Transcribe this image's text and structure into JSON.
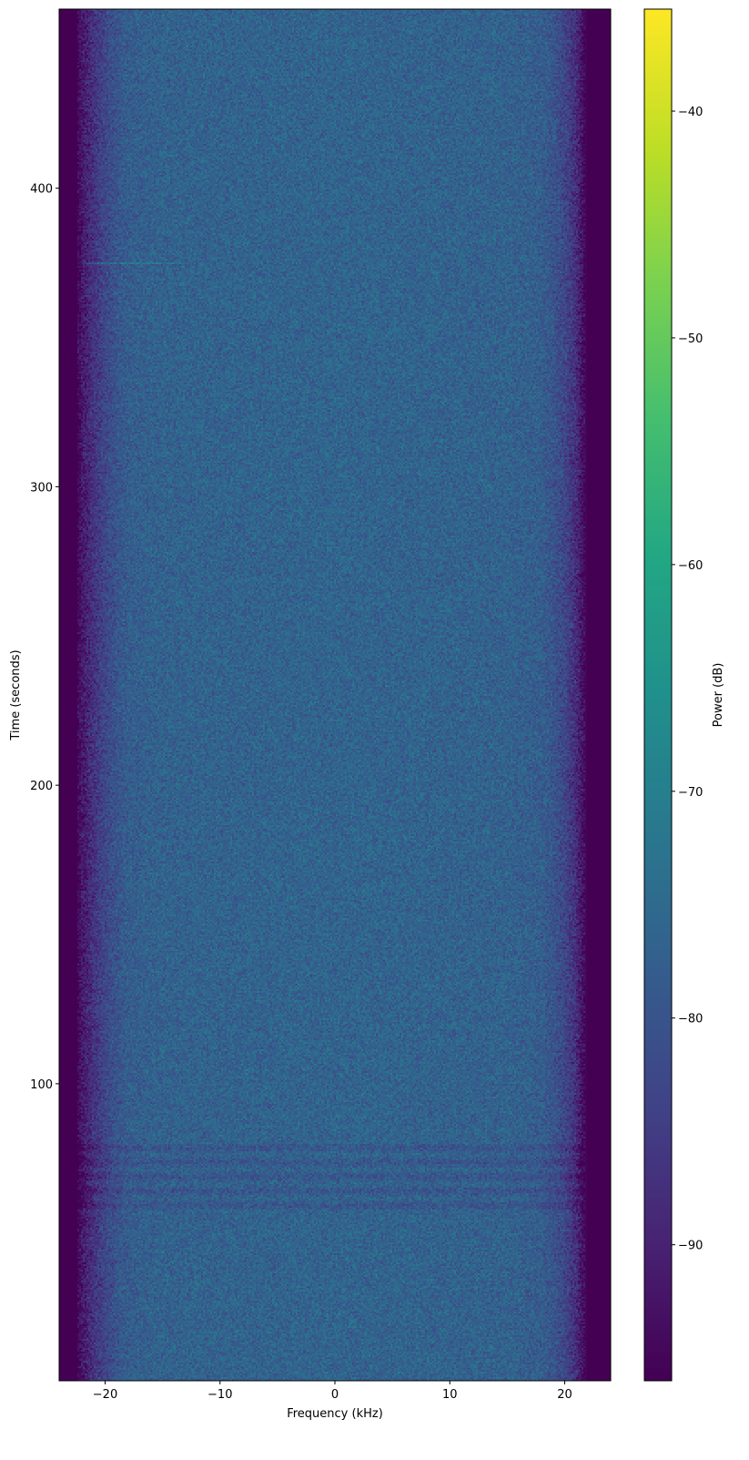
{
  "chart_data": {
    "type": "heatmap",
    "title": "",
    "xlabel": "Frequency (kHz)",
    "ylabel": "Time (seconds)",
    "xlim": [
      -24,
      24
    ],
    "ylim": [
      0.5,
      460
    ],
    "xticks": [
      -20,
      -10,
      0,
      10,
      20
    ],
    "xtick_labels": [
      "−20",
      "−10",
      "0",
      "10",
      "20"
    ],
    "yticks": [
      100,
      200,
      300,
      400
    ],
    "ytick_labels": [
      "100",
      "200",
      "300",
      "400"
    ],
    "colormap": "viridis",
    "colorbar": {
      "label": "Power (dB)",
      "range": [
        -96,
        -35.5
      ],
      "ticks": [
        -40,
        -50,
        -60,
        -70,
        -80,
        -90
      ],
      "tick_labels": [
        "−40",
        "−50",
        "−60",
        "−70",
        "−80",
        "−90"
      ]
    },
    "profile": {
      "description_values": "approximate mean power in dB by frequency (kHz)",
      "frequency": [
        -24,
        -22.5,
        -22,
        -21,
        -20,
        -19,
        -18,
        -15,
        0,
        15,
        18,
        19,
        20,
        21,
        21.5,
        22,
        24
      ],
      "power_db": [
        -96,
        -96,
        -92,
        -87,
        -83,
        -80,
        -78,
        -77,
        -76.5,
        -77,
        -78,
        -80,
        -83,
        -88,
        -93,
        -96,
        -96
      ]
    },
    "features": [
      {
        "time_range": [
          58,
          80
        ],
        "frequency_range": [
          -22,
          22
        ],
        "power_offset_db": -3
      },
      {
        "time": 375,
        "frequency_range": [
          -22,
          -14
        ],
        "power_offset_db": 6
      }
    ],
    "grid": false
  }
}
